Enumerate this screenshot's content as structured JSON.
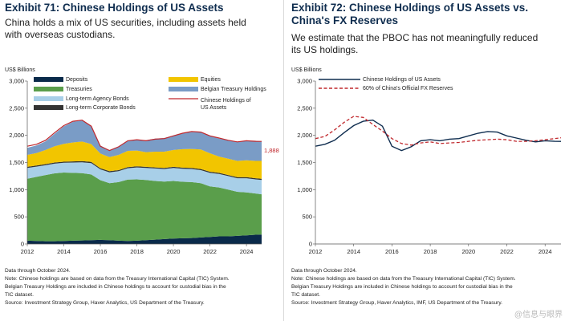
{
  "left": {
    "title": "Exhibit 71: Chinese Holdings of US Assets",
    "subtitle_lines": [
      "China holds a mix of US securities, including assets held",
      "with overseas custodians."
    ],
    "unit": "US$ Billions",
    "notes": [
      "Data through October 2024.",
      "Note: Chinese holdings are based on data from the Treasury International Capital (TIC) System.",
      "Belgian Treasury Holdings are included in Chinese holdings to account for custodial bias in the",
      "TIC dataset.",
      "Source: Investment Strategy Group, Haver Analytics, US Department of the Treasury."
    ]
  },
  "right": {
    "title_lines": [
      "Exhibit 72: Chinese Holdings of US Assets vs.",
      "China's FX Reserves"
    ],
    "subtitle_lines": [
      "We estimate that the PBOC has not meaningfully reduced",
      "its US holdings."
    ],
    "unit": "US$ Billions",
    "notes": [
      "Data through October 2024.",
      "Note: Chinese holdings are based on data from the Treasury International Capital (TIC) System.",
      "Belgian Treasury Holdings are included in Chinese holdings to account for custodial bias in the",
      "TIC dataset.",
      "Source: Investment Strategy Group, Haver Analytics, IMF, US Department of the Treasury."
    ]
  },
  "watermark": "@信息与眼界",
  "chart_data": [
    {
      "type": "area",
      "stacked": true,
      "x_ticks": [
        "2012",
        "2014",
        "2016",
        "2018",
        "2020",
        "2022",
        "2024"
      ],
      "xlim": [
        2012,
        2024.83
      ],
      "ylim": [
        0,
        3000
      ],
      "y_ticks": [
        0,
        500,
        1000,
        1500,
        2000,
        2500,
        3000
      ],
      "y_tick_labels": [
        "0",
        "500",
        "1,000",
        "1,500",
        "2,000",
        "2,500",
        "3,000"
      ],
      "grid": false,
      "legend_position": "top",
      "annotation": "1,888",
      "x": [
        2012,
        2012.5,
        2013,
        2013.5,
        2014,
        2014.5,
        2015,
        2015.5,
        2016,
        2016.5,
        2017,
        2017.5,
        2018,
        2018.5,
        2019,
        2019.5,
        2020,
        2020.5,
        2021,
        2021.5,
        2022,
        2022.5,
        2023,
        2023.5,
        2024,
        2024.5,
        2024.83
      ],
      "series": [
        {
          "name": "Deposits",
          "color": "#0a2a4a",
          "values": [
            60,
            55,
            50,
            50,
            55,
            60,
            65,
            70,
            75,
            70,
            60,
            55,
            60,
            70,
            80,
            90,
            100,
            105,
            110,
            120,
            130,
            140,
            140,
            150,
            160,
            170,
            175
          ]
        },
        {
          "name": "Treasuries",
          "color": "#5a9e4b",
          "values": [
            1140,
            1180,
            1220,
            1250,
            1260,
            1250,
            1240,
            1210,
            1100,
            1050,
            1080,
            1130,
            1130,
            1110,
            1080,
            1060,
            1060,
            1040,
            1030,
            1000,
            930,
            900,
            860,
            810,
            790,
            760,
            740
          ]
        },
        {
          "name": "Long-term Agency Bonds",
          "color": "#a8cfe8",
          "values": [
            200,
            190,
            180,
            180,
            180,
            190,
            200,
            210,
            200,
            200,
            200,
            210,
            220,
            220,
            230,
            230,
            240,
            240,
            240,
            240,
            250,
            250,
            250,
            250,
            260,
            260,
            265
          ]
        },
        {
          "name": "Long-term Corporate Bonds",
          "color": "#333333",
          "values": [
            20,
            20,
            20,
            20,
            20,
            20,
            20,
            20,
            20,
            20,
            20,
            20,
            20,
            20,
            20,
            20,
            20,
            20,
            20,
            20,
            20,
            20,
            20,
            20,
            20,
            20,
            20
          ]
        },
        {
          "name": "Equities",
          "color": "#f2c500",
          "values": [
            220,
            230,
            260,
            300,
            330,
            350,
            360,
            330,
            270,
            260,
            280,
            300,
            290,
            270,
            290,
            300,
            310,
            340,
            350,
            360,
            340,
            300,
            300,
            300,
            310,
            320,
            330
          ]
        },
        {
          "name": "Belgian Treasury Holdings",
          "color": "#7a9cc6",
          "values": [
            130,
            140,
            160,
            230,
            320,
            380,
            390,
            330,
            150,
            120,
            150,
            180,
            200,
            220,
            240,
            250,
            270,
            300,
            310,
            320,
            320,
            330,
            340,
            350,
            360,
            370,
            358
          ]
        }
      ],
      "total_line": {
        "name": "Chinese Holdings of US Assets",
        "color": "#c0282d",
        "values": [
          1800,
          1835,
          1910,
          2050,
          2180,
          2260,
          2280,
          2170,
          1800,
          1720,
          1790,
          1900,
          1920,
          1900,
          1930,
          1940,
          1990,
          2040,
          2070,
          2060,
          1990,
          1950,
          1910,
          1880,
          1900,
          1890,
          1888
        ]
      }
    },
    {
      "type": "line",
      "x_ticks": [
        "2012",
        "2014",
        "2016",
        "2018",
        "2020",
        "2022",
        "2024"
      ],
      "xlim": [
        2012,
        2024.83
      ],
      "ylim": [
        0,
        3000
      ],
      "y_ticks": [
        0,
        500,
        1000,
        1500,
        2000,
        2500,
        3000
      ],
      "y_tick_labels": [
        "0",
        "500",
        "1,000",
        "1,500",
        "2,000",
        "2,500",
        "3,000"
      ],
      "grid": false,
      "legend_position": "top",
      "x": [
        2012,
        2012.5,
        2013,
        2013.5,
        2014,
        2014.5,
        2015,
        2015.5,
        2016,
        2016.5,
        2017,
        2017.5,
        2018,
        2018.5,
        2019,
        2019.5,
        2020,
        2020.5,
        2021,
        2021.5,
        2022,
        2022.5,
        2023,
        2023.5,
        2024,
        2024.5,
        2024.83
      ],
      "series": [
        {
          "name": "Chinese Holdings of US Assets",
          "color": "#0f2d4f",
          "dash": "solid",
          "values": [
            1800,
            1835,
            1910,
            2050,
            2180,
            2260,
            2280,
            2170,
            1800,
            1720,
            1790,
            1900,
            1920,
            1900,
            1930,
            1940,
            1990,
            2040,
            2070,
            2060,
            1990,
            1950,
            1910,
            1880,
            1900,
            1890,
            1888
          ]
        },
        {
          "name": "60% of China's Official FX Reserves",
          "color": "#c0282d",
          "dash": "dashed",
          "values": [
            1940,
            1980,
            2100,
            2240,
            2350,
            2330,
            2200,
            2080,
            1940,
            1850,
            1820,
            1860,
            1880,
            1850,
            1860,
            1870,
            1890,
            1910,
            1920,
            1930,
            1920,
            1890,
            1890,
            1900,
            1920,
            1940,
            1955
          ]
        }
      ]
    }
  ]
}
